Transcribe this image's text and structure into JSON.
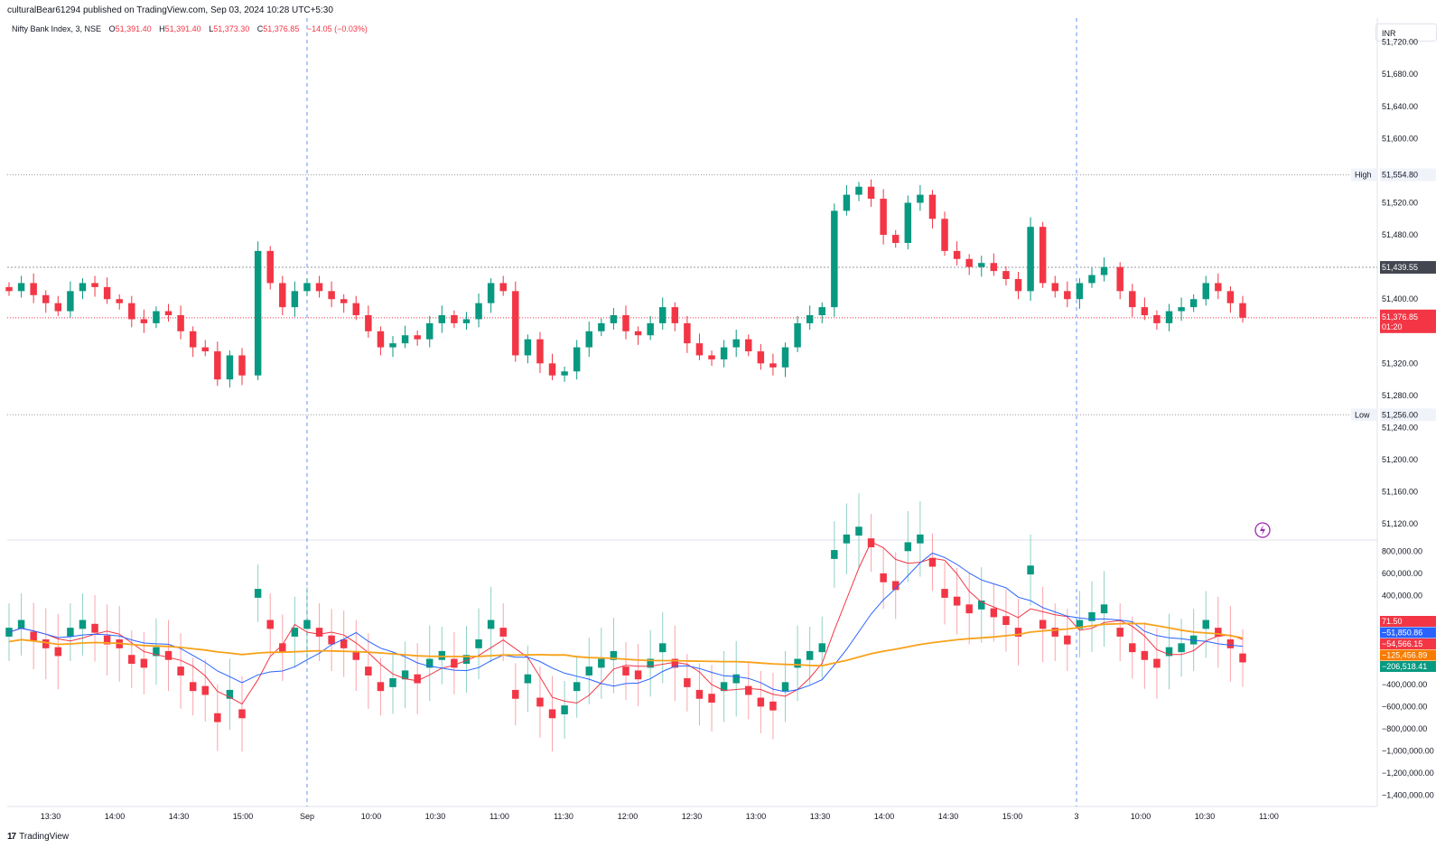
{
  "header": {
    "published_line": "culturalBear61294 published on TradingView.com, Sep 03, 2024 10:28 UTC+5:30",
    "symbol": "Nifty Bank Index, 3, NSE",
    "open_label": "O",
    "open_value": "51,391.40",
    "high_label": "H",
    "high_value": "51,391.40",
    "low_label": "L",
    "low_value": "51,373.30",
    "close_label": "C",
    "close_value": "51,376.85",
    "change": "−14.05 (−0.03%)"
  },
  "currency": "INR",
  "brand": "TradingView",
  "colors": {
    "up": "#089981",
    "down": "#f23645",
    "blue": "#2962ff",
    "orange": "#f7a21b",
    "accent_purple": "#9c27b0"
  },
  "chart_data": [
    {
      "type": "candlestick",
      "title": "",
      "interval_minutes": 3,
      "y_ticks": [
        "51,720.00",
        "51,680.00",
        "51,640.00",
        "51,600.00",
        "51,520.00",
        "51,480.00",
        "51,400.00",
        "51,320.00",
        "51,280.00",
        "51,240.00",
        "51,200.00",
        "51,160.00",
        "51,120.00"
      ],
      "ylim": [
        51100,
        51750
      ],
      "x_ticks": [
        "13:30",
        "14:00",
        "14:30",
        "15:00",
        "Sep",
        "10:00",
        "10:30",
        "11:00",
        "11:30",
        "12:00",
        "12:30",
        "13:00",
        "13:30",
        "14:00",
        "14:30",
        "15:00",
        "3",
        "10:00",
        "10:30",
        "11:00"
      ],
      "session_breaks": [
        "Sep",
        "3"
      ],
      "high_marker": {
        "label": "High",
        "value": "51,554.80"
      },
      "low_marker": {
        "label": "Low",
        "value": "51,256.00"
      },
      "reference_line": {
        "value": "51,439.55"
      },
      "last_price": {
        "value": "51,376.85",
        "countdown": "01:20"
      },
      "close_path": [
        51410,
        51420,
        51405,
        51395,
        51385,
        51410,
        51420,
        51415,
        51400,
        51395,
        51375,
        51370,
        51385,
        51380,
        51360,
        51340,
        51335,
        51300,
        51330,
        51305,
        51460,
        51420,
        51390,
        51410,
        51420,
        51410,
        51400,
        51395,
        51380,
        51360,
        51340,
        51345,
        51355,
        51350,
        51370,
        51380,
        51370,
        51375,
        51395,
        51420,
        51410,
        51330,
        51350,
        51320,
        51305,
        51310,
        51340,
        51360,
        51370,
        51380,
        51360,
        51355,
        51370,
        51390,
        51370,
        51345,
        51330,
        51325,
        51340,
        51350,
        51335,
        51320,
        51315,
        51340,
        51370,
        51380,
        51390,
        51510,
        51530,
        51540,
        51525,
        51480,
        51470,
        51520,
        51530,
        51500,
        51460,
        51450,
        51440,
        51445,
        51435,
        51425,
        51410,
        51490,
        51420,
        51410,
        51400,
        51420,
        51430,
        51440,
        51410,
        51390,
        51380,
        51370,
        51385,
        51390,
        51400,
        51420,
        51410,
        51395,
        51376.85
      ]
    },
    {
      "type": "oscillator",
      "title": "",
      "y_ticks": [
        "800,000.00",
        "600,000.00",
        "400,000.00",
        "−400,000.00",
        "−600,000.00",
        "−800,000.00",
        "−1,000,000.00",
        "−1,200,000.00",
        "−1,400,000.00"
      ],
      "ylim": [
        -1500000,
        900000
      ],
      "value_badges": [
        {
          "value": "71.50",
          "color": "#f23645"
        },
        {
          "value": "−51,850.86",
          "color": "#2962ff"
        },
        {
          "value": "−54,566.15",
          "color": "#f23645"
        },
        {
          "value": "−125,456.89",
          "color": "#f57c00"
        },
        {
          "value": "−206,518.41",
          "color": "#089981"
        }
      ]
    }
  ]
}
